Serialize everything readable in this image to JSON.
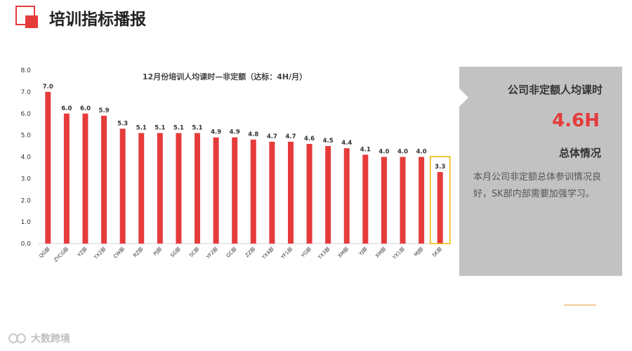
{
  "header": {
    "title": "培训指标播报"
  },
  "colors": {
    "accent": "#e63b3b",
    "highlight_border": "#f0b400",
    "panel": "#c2c2c2",
    "highlight_line": "#f0a040"
  },
  "side_panel": {
    "heading": "公司非定额人均课时",
    "value": "4.6H",
    "sub_heading": "总体情况",
    "description": "本月公司非定额总体参训情况良好，SK部内部需要加强学习。"
  },
  "watermark": {
    "text": "大数跨境",
    "icon": "brand-logo-icon"
  },
  "chart_data": {
    "type": "bar",
    "title": "12月份培训人均课时—非定额（达标：4H/月）",
    "xlabel": "",
    "ylabel": "",
    "ylim": [
      0,
      8
    ],
    "yticks": [
      "0.0",
      "1.0",
      "2.0",
      "3.0",
      "4.0",
      "5.0",
      "6.0",
      "7.0",
      "8.0"
    ],
    "grid": false,
    "legend": "none",
    "categories": [
      "QG部",
      "ZYCG部",
      "YZ部",
      "YX2部",
      "CW部",
      "RZ部",
      "PJ部",
      "SG部",
      "SC部",
      "YF2部",
      "GC部",
      "ZZ部",
      "YX4部",
      "YF1部",
      "YG部",
      "YX3部",
      "XM部",
      "YJ部",
      "XM部",
      "YX1部",
      "MJ部",
      "SK部"
    ],
    "values": [
      7.0,
      6.0,
      6.0,
      5.9,
      5.3,
      5.1,
      5.1,
      5.1,
      5.1,
      4.9,
      4.9,
      4.8,
      4.7,
      4.7,
      4.6,
      4.5,
      4.4,
      4.1,
      4.0,
      4.0,
      4.0,
      3.3
    ],
    "value_labels": [
      "7.0",
      "6.0",
      "6.0",
      "5.9",
      "5.3",
      "5.1",
      "5.1",
      "5.1",
      "5.1",
      "4.9",
      "4.9",
      "4.8",
      "4.7",
      "4.7",
      "4.6",
      "4.5",
      "4.4",
      "4.1",
      "4.0",
      "4.0",
      "4.0",
      "3.3"
    ],
    "highlighted_category": "SK部"
  }
}
